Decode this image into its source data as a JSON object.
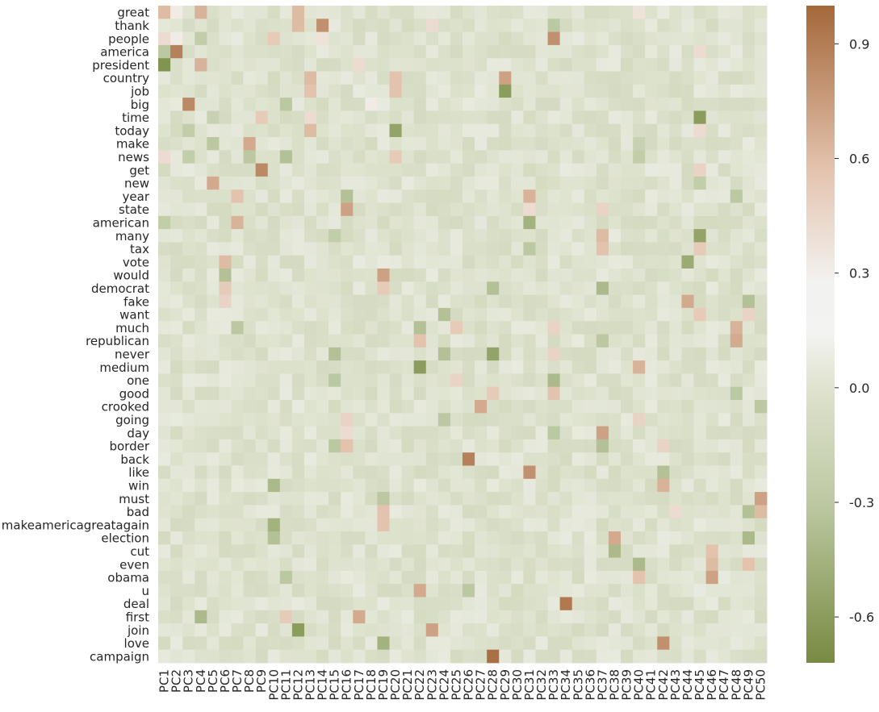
{
  "chart_data": {
    "type": "heatmap",
    "rows": [
      "great",
      "thank",
      "people",
      "america",
      "president",
      "country",
      "job",
      "big",
      "time",
      "today",
      "make",
      "news",
      "get",
      "new",
      "year",
      "state",
      "american",
      "many",
      "tax",
      "vote",
      "would",
      "democrat",
      "fake",
      "want",
      "much",
      "republican",
      "never",
      "medium",
      "one",
      "good",
      "crooked",
      "going",
      "day",
      "border",
      "back",
      "like",
      "win",
      "must",
      "bad",
      "makeamericagreatagain",
      "election",
      "cut",
      "even",
      "obama",
      "u",
      "deal",
      "first",
      "join",
      "love",
      "campaign"
    ],
    "columns": [
      "PC1",
      "PC2",
      "PC3",
      "PC4",
      "PC5",
      "PC6",
      "PC7",
      "PC8",
      "PC9",
      "PC10",
      "PC11",
      "PC12",
      "PC13",
      "PC14",
      "PC15",
      "PC16",
      "PC17",
      "PC18",
      "PC19",
      "PC20",
      "PC21",
      "PC22",
      "PC23",
      "PC24",
      "PC25",
      "PC26",
      "PC27",
      "PC28",
      "PC29",
      "PC30",
      "PC31",
      "PC32",
      "PC33",
      "PC34",
      "PC35",
      "PC36",
      "PC37",
      "PC38",
      "PC39",
      "PC40",
      "PC41",
      "PC42",
      "PC43",
      "PC44",
      "PC45",
      "PC46",
      "PC47",
      "PC48",
      "PC49",
      "PC50"
    ],
    "vmin": -0.72,
    "vmax": 1.0,
    "colorbar_ticks": [
      "-0.6",
      "-0.3",
      "0.0",
      "0.3",
      "0.6",
      "0.9"
    ],
    "colorbar_tick_values": [
      -0.6,
      -0.3,
      0.0,
      0.3,
      0.6,
      0.9
    ],
    "colormap": [
      "#788a41",
      "#dde2cd",
      "#f3f3f1",
      "#e7c8b5",
      "#a4683a"
    ],
    "cells": [
      {
        "r": "great",
        "c": "PC1",
        "v": 0.5
      },
      {
        "r": "great",
        "c": "PC2",
        "v": 0.2
      },
      {
        "r": "great",
        "c": "PC4",
        "v": 0.55
      },
      {
        "r": "great",
        "c": "PC12",
        "v": 0.5
      },
      {
        "r": "great",
        "c": "PC40",
        "v": 0.25
      },
      {
        "r": "thank",
        "c": "PC12",
        "v": 0.5
      },
      {
        "r": "thank",
        "c": "PC14",
        "v": 0.75
      },
      {
        "r": "thank",
        "c": "PC23",
        "v": 0.3
      },
      {
        "r": "thank",
        "c": "PC33",
        "v": -0.3
      },
      {
        "r": "people",
        "c": "PC1",
        "v": 0.3
      },
      {
        "r": "people",
        "c": "PC2",
        "v": 0.2
      },
      {
        "r": "people",
        "c": "PC4",
        "v": -0.25
      },
      {
        "r": "people",
        "c": "PC10",
        "v": 0.4
      },
      {
        "r": "people",
        "c": "PC14",
        "v": 0.25
      },
      {
        "r": "people",
        "c": "PC33",
        "v": 0.75
      },
      {
        "r": "america",
        "c": "PC1",
        "v": -0.3
      },
      {
        "r": "america",
        "c": "PC2",
        "v": 0.85
      },
      {
        "r": "america",
        "c": "PC45",
        "v": 0.3
      },
      {
        "r": "president",
        "c": "PC1",
        "v": -0.65
      },
      {
        "r": "president",
        "c": "PC4",
        "v": 0.55
      },
      {
        "r": "president",
        "c": "PC17",
        "v": 0.3
      },
      {
        "r": "country",
        "c": "PC13",
        "v": 0.5
      },
      {
        "r": "country",
        "c": "PC20",
        "v": 0.45
      },
      {
        "r": "country",
        "c": "PC29",
        "v": 0.65
      },
      {
        "r": "job",
        "c": "PC13",
        "v": 0.45
      },
      {
        "r": "job",
        "c": "PC20",
        "v": 0.45
      },
      {
        "r": "job",
        "c": "PC29",
        "v": -0.6
      },
      {
        "r": "big",
        "c": "PC3",
        "v": 0.8
      },
      {
        "r": "big",
        "c": "PC11",
        "v": -0.3
      },
      {
        "r": "big",
        "c": "PC18",
        "v": 0.2
      },
      {
        "r": "time",
        "c": "PC5",
        "v": -0.2
      },
      {
        "r": "time",
        "c": "PC9",
        "v": 0.4
      },
      {
        "r": "time",
        "c": "PC13",
        "v": 0.3
      },
      {
        "r": "time",
        "c": "PC45",
        "v": -0.6
      },
      {
        "r": "today",
        "c": "PC3",
        "v": -0.25
      },
      {
        "r": "today",
        "c": "PC13",
        "v": 0.5
      },
      {
        "r": "today",
        "c": "PC20",
        "v": -0.55
      },
      {
        "r": "today",
        "c": "PC45",
        "v": 0.3
      },
      {
        "r": "make",
        "c": "PC5",
        "v": -0.3
      },
      {
        "r": "make",
        "c": "PC8",
        "v": 0.6
      },
      {
        "r": "make",
        "c": "PC40",
        "v": -0.2
      },
      {
        "r": "news",
        "c": "PC1",
        "v": 0.3
      },
      {
        "r": "news",
        "c": "PC3",
        "v": -0.25
      },
      {
        "r": "news",
        "c": "PC8",
        "v": -0.3
      },
      {
        "r": "news",
        "c": "PC11",
        "v": -0.35
      },
      {
        "r": "news",
        "c": "PC20",
        "v": 0.4
      },
      {
        "r": "news",
        "c": "PC40",
        "v": -0.25
      },
      {
        "r": "get",
        "c": "PC9",
        "v": 0.8
      },
      {
        "r": "get",
        "c": "PC45",
        "v": 0.35
      },
      {
        "r": "new",
        "c": "PC5",
        "v": 0.6
      },
      {
        "r": "new",
        "c": "PC45",
        "v": -0.25
      },
      {
        "r": "year",
        "c": "PC7",
        "v": 0.45
      },
      {
        "r": "year",
        "c": "PC16",
        "v": -0.35
      },
      {
        "r": "year",
        "c": "PC31",
        "v": 0.55
      },
      {
        "r": "year",
        "c": "PC48",
        "v": -0.3
      },
      {
        "r": "state",
        "c": "PC16",
        "v": 0.65
      },
      {
        "r": "state",
        "c": "PC31",
        "v": 0.3
      },
      {
        "r": "state",
        "c": "PC37",
        "v": 0.35
      },
      {
        "r": "american",
        "c": "PC1",
        "v": -0.25
      },
      {
        "r": "american",
        "c": "PC7",
        "v": 0.55
      },
      {
        "r": "american",
        "c": "PC31",
        "v": -0.45
      },
      {
        "r": "many",
        "c": "PC15",
        "v": -0.25
      },
      {
        "r": "many",
        "c": "PC37",
        "v": 0.5
      },
      {
        "r": "many",
        "c": "PC45",
        "v": -0.55
      },
      {
        "r": "tax",
        "c": "PC31",
        "v": -0.3
      },
      {
        "r": "tax",
        "c": "PC37",
        "v": 0.45
      },
      {
        "r": "tax",
        "c": "PC45",
        "v": 0.4
      },
      {
        "r": "vote",
        "c": "PC6",
        "v": 0.5
      },
      {
        "r": "vote",
        "c": "PC44",
        "v": -0.5
      },
      {
        "r": "would",
        "c": "PC6",
        "v": -0.35
      },
      {
        "r": "would",
        "c": "PC19",
        "v": 0.65
      },
      {
        "r": "democrat",
        "c": "PC6",
        "v": 0.4
      },
      {
        "r": "democrat",
        "c": "PC19",
        "v": 0.4
      },
      {
        "r": "democrat",
        "c": "PC28",
        "v": -0.35
      },
      {
        "r": "democrat",
        "c": "PC37",
        "v": -0.4
      },
      {
        "r": "fake",
        "c": "PC6",
        "v": 0.35
      },
      {
        "r": "fake",
        "c": "PC44",
        "v": 0.6
      },
      {
        "r": "fake",
        "c": "PC49",
        "v": -0.35
      },
      {
        "r": "want",
        "c": "PC24",
        "v": -0.35
      },
      {
        "r": "want",
        "c": "PC45",
        "v": 0.4
      },
      {
        "r": "want",
        "c": "PC49",
        "v": 0.35
      },
      {
        "r": "much",
        "c": "PC7",
        "v": -0.3
      },
      {
        "r": "much",
        "c": "PC22",
        "v": -0.35
      },
      {
        "r": "much",
        "c": "PC25",
        "v": 0.4
      },
      {
        "r": "much",
        "c": "PC33",
        "v": 0.35
      },
      {
        "r": "much",
        "c": "PC48",
        "v": 0.55
      },
      {
        "r": "republican",
        "c": "PC22",
        "v": 0.45
      },
      {
        "r": "republican",
        "c": "PC37",
        "v": -0.3
      },
      {
        "r": "republican",
        "c": "PC48",
        "v": 0.6
      },
      {
        "r": "never",
        "c": "PC15",
        "v": -0.35
      },
      {
        "r": "never",
        "c": "PC24",
        "v": -0.35
      },
      {
        "r": "never",
        "c": "PC28",
        "v": -0.55
      },
      {
        "r": "never",
        "c": "PC33",
        "v": 0.35
      },
      {
        "r": "medium",
        "c": "PC22",
        "v": -0.6
      },
      {
        "r": "medium",
        "c": "PC40",
        "v": 0.55
      },
      {
        "r": "one",
        "c": "PC15",
        "v": -0.3
      },
      {
        "r": "one",
        "c": "PC25",
        "v": 0.35
      },
      {
        "r": "one",
        "c": "PC33",
        "v": -0.4
      },
      {
        "r": "good",
        "c": "PC28",
        "v": 0.4
      },
      {
        "r": "good",
        "c": "PC33",
        "v": 0.45
      },
      {
        "r": "good",
        "c": "PC48",
        "v": -0.3
      },
      {
        "r": "crooked",
        "c": "PC27",
        "v": 0.6
      },
      {
        "r": "crooked",
        "c": "PC50",
        "v": -0.3
      },
      {
        "r": "going",
        "c": "PC16",
        "v": 0.35
      },
      {
        "r": "going",
        "c": "PC24",
        "v": -0.3
      },
      {
        "r": "going",
        "c": "PC40",
        "v": 0.35
      },
      {
        "r": "day",
        "c": "PC16",
        "v": 0.3
      },
      {
        "r": "day",
        "c": "PC37",
        "v": 0.65
      },
      {
        "r": "day",
        "c": "PC33",
        "v": -0.3
      },
      {
        "r": "border",
        "c": "PC16",
        "v": 0.45
      },
      {
        "r": "border",
        "c": "PC15",
        "v": -0.3
      },
      {
        "r": "border",
        "c": "PC37",
        "v": -0.35
      },
      {
        "r": "border",
        "c": "PC42",
        "v": 0.35
      },
      {
        "r": "back",
        "c": "PC26",
        "v": 0.85
      },
      {
        "r": "like",
        "c": "PC31",
        "v": 0.75
      },
      {
        "r": "like",
        "c": "PC42",
        "v": -0.35
      },
      {
        "r": "win",
        "c": "PC10",
        "v": -0.4
      },
      {
        "r": "win",
        "c": "PC42",
        "v": 0.55
      },
      {
        "r": "must",
        "c": "PC19",
        "v": -0.3
      },
      {
        "r": "must",
        "c": "PC50",
        "v": 0.65
      },
      {
        "r": "bad",
        "c": "PC19",
        "v": 0.45
      },
      {
        "r": "bad",
        "c": "PC43",
        "v": 0.3
      },
      {
        "r": "bad",
        "c": "PC49",
        "v": -0.35
      },
      {
        "r": "bad",
        "c": "PC50",
        "v": 0.5
      },
      {
        "r": "makeamericagreatagain",
        "c": "PC10",
        "v": -0.45
      },
      {
        "r": "makeamericagreatagain",
        "c": "PC19",
        "v": 0.45
      },
      {
        "r": "election",
        "c": "PC10",
        "v": -0.35
      },
      {
        "r": "election",
        "c": "PC38",
        "v": 0.6
      },
      {
        "r": "election",
        "c": "PC49",
        "v": -0.4
      },
      {
        "r": "cut",
        "c": "PC38",
        "v": -0.4
      },
      {
        "r": "cut",
        "c": "PC46",
        "v": 0.45
      },
      {
        "r": "even",
        "c": "PC40",
        "v": -0.4
      },
      {
        "r": "even",
        "c": "PC46",
        "v": 0.5
      },
      {
        "r": "even",
        "c": "PC49",
        "v": 0.45
      },
      {
        "r": "obama",
        "c": "PC11",
        "v": -0.3
      },
      {
        "r": "obama",
        "c": "PC40",
        "v": 0.45
      },
      {
        "r": "obama",
        "c": "PC46",
        "v": 0.65
      },
      {
        "r": "u",
        "c": "PC22",
        "v": 0.6
      },
      {
        "r": "u",
        "c": "PC26",
        "v": -0.3
      },
      {
        "r": "deal",
        "c": "PC34",
        "v": 0.9
      },
      {
        "r": "first",
        "c": "PC4",
        "v": -0.4
      },
      {
        "r": "first",
        "c": "PC17",
        "v": 0.6
      },
      {
        "r": "first",
        "c": "PC11",
        "v": 0.4
      },
      {
        "r": "join",
        "c": "PC12",
        "v": -0.6
      },
      {
        "r": "join",
        "c": "PC23",
        "v": 0.65
      },
      {
        "r": "love",
        "c": "PC19",
        "v": -0.45
      },
      {
        "r": "love",
        "c": "PC42",
        "v": 0.75
      },
      {
        "r": "campaign",
        "c": "PC28",
        "v": 0.95
      }
    ]
  }
}
